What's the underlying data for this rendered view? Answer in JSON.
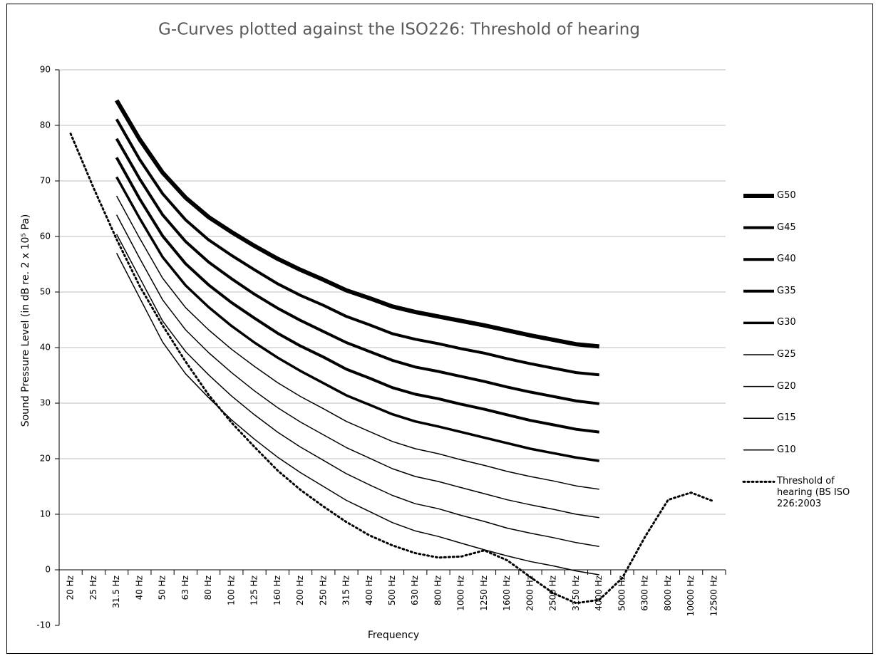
{
  "chart_data": {
    "type": "line",
    "title": "G-Curves plotted against the ISO226: Threshold of hearing",
    "x_label": "Frequency",
    "y_label": "Sound Pressure Level (in dB re. 2 x 10⁵ Pa)",
    "categories": [
      "20 Hz",
      "25 Hz",
      "31.5 Hz",
      "40 Hz",
      "50 Hz",
      "63 Hz",
      "80 Hz",
      "100 Hz",
      "125 Hz",
      "160 Hz",
      "200 Hz",
      "250 Hz",
      "315 Hz",
      "400 Hz",
      "500 Hz",
      "630 Hz",
      "800 Hz",
      "1000 Hz",
      "1250 Hz",
      "1600 Hz",
      "2000 Hz",
      "2500 Hz",
      "3150 Hz",
      "4000 Hz",
      "5000 Hz",
      "6300 Hz",
      "8000 Hz",
      "10000 Hz",
      "12500 Hz"
    ],
    "ylim": [
      -10,
      90
    ],
    "yticks": [
      -10,
      0,
      10,
      20,
      30,
      40,
      50,
      60,
      70,
      80,
      90
    ],
    "grid": true,
    "legend": "right",
    "series": [
      {
        "name": "G50",
        "color": "#000000",
        "width": 6,
        "values": [
          null,
          null,
          84.5,
          77.5,
          71.5,
          67,
          63.5,
          60.8,
          58.3,
          56,
          54,
          52.2,
          50.3,
          48.9,
          47.4,
          46.4,
          45.6,
          44.8,
          44,
          43.1,
          42.2,
          41.4,
          40.6,
          40.2,
          null,
          null,
          null,
          null,
          null
        ]
      },
      {
        "name": "G45",
        "color": "#000000",
        "width": 4,
        "values": [
          null,
          null,
          81.1,
          73.9,
          67.7,
          63.0,
          59.4,
          56.6,
          54.0,
          51.5,
          49.4,
          47.6,
          45.6,
          44.1,
          42.5,
          41.5,
          40.7,
          39.8,
          39.0,
          38.0,
          37.1,
          36.3,
          35.5,
          35.1,
          null,
          null,
          null,
          null,
          null
        ]
      },
      {
        "name": "G40",
        "color": "#000000",
        "width": 4,
        "values": [
          null,
          null,
          77.6,
          70.4,
          63.9,
          59.1,
          55.4,
          52.4,
          49.6,
          47.1,
          44.9,
          42.9,
          40.9,
          39.3,
          37.7,
          36.5,
          35.7,
          34.8,
          33.9,
          32.9,
          32.0,
          31.2,
          30.4,
          29.9,
          null,
          null,
          null,
          null,
          null
        ]
      },
      {
        "name": "G35",
        "color": "#000000",
        "width": 4,
        "values": [
          null,
          null,
          74.2,
          66.8,
          60.1,
          55.1,
          51.3,
          48.1,
          45.3,
          42.6,
          40.3,
          38.3,
          36.1,
          34.5,
          32.8,
          31.6,
          30.8,
          29.8,
          28.9,
          27.9,
          26.9,
          26.1,
          25.3,
          24.8,
          null,
          null,
          null,
          null,
          null
        ]
      },
      {
        "name": "G30",
        "color": "#000000",
        "width": 3.5,
        "values": [
          null,
          null,
          70.7,
          63.3,
          56.3,
          51.2,
          47.3,
          43.9,
          40.9,
          38.2,
          35.8,
          33.6,
          31.4,
          29.7,
          28.0,
          26.7,
          25.8,
          24.8,
          23.8,
          22.8,
          21.8,
          21.0,
          20.2,
          19.6,
          null,
          null,
          null,
          null,
          null
        ]
      },
      {
        "name": "G25",
        "color": "#000000",
        "width": 1.5,
        "values": [
          null,
          null,
          67.3,
          59.7,
          52.5,
          47.2,
          43.2,
          39.7,
          36.6,
          33.7,
          31.2,
          29.0,
          26.7,
          24.9,
          23.1,
          21.8,
          20.9,
          19.8,
          18.8,
          17.7,
          16.8,
          16.0,
          15.1,
          14.5,
          null,
          null,
          null,
          null,
          null
        ]
      },
      {
        "name": "G20",
        "color": "#000000",
        "width": 1.5,
        "values": [
          null,
          null,
          63.9,
          56.1,
          48.6,
          43.2,
          39.1,
          35.5,
          32.2,
          29.2,
          26.6,
          24.3,
          22.0,
          20.1,
          18.2,
          16.8,
          15.9,
          14.8,
          13.7,
          12.6,
          11.7,
          10.9,
          10.0,
          9.4,
          null,
          null,
          null,
          null,
          null
        ]
      },
      {
        "name": "G15",
        "color": "#000000",
        "width": 1.5,
        "values": [
          null,
          null,
          60.4,
          52.6,
          44.8,
          39.3,
          35.1,
          31.3,
          27.9,
          24.8,
          22.1,
          19.7,
          17.3,
          15.3,
          13.4,
          11.9,
          11.0,
          9.8,
          8.7,
          7.5,
          6.6,
          5.8,
          4.9,
          4.2,
          null,
          null,
          null,
          null,
          null
        ]
      },
      {
        "name": "G10",
        "color": "#000000",
        "width": 1.5,
        "values": [
          null,
          null,
          57,
          49,
          41,
          35.3,
          31,
          27,
          23.5,
          20.3,
          17.5,
          15,
          12.5,
          10.5,
          8.5,
          7,
          6,
          4.8,
          3.6,
          2.5,
          1.5,
          0.7,
          -0.2,
          -0.9,
          null,
          null,
          null,
          null,
          null
        ]
      },
      {
        "name": "Threshold of hearing (BS ISO 226:2003",
        "color": "#000000",
        "width": 3,
        "dashed": true,
        "values": [
          78.5,
          68.7,
          59.5,
          51.1,
          44.0,
          37.5,
          31.5,
          26.5,
          22.1,
          17.9,
          14.4,
          11.4,
          8.6,
          6.2,
          4.4,
          3.0,
          2.2,
          2.4,
          3.5,
          1.7,
          -1.3,
          -4.2,
          -6.0,
          -5.4,
          -1.5,
          6.0,
          12.6,
          13.9,
          12.3
        ]
      }
    ]
  }
}
